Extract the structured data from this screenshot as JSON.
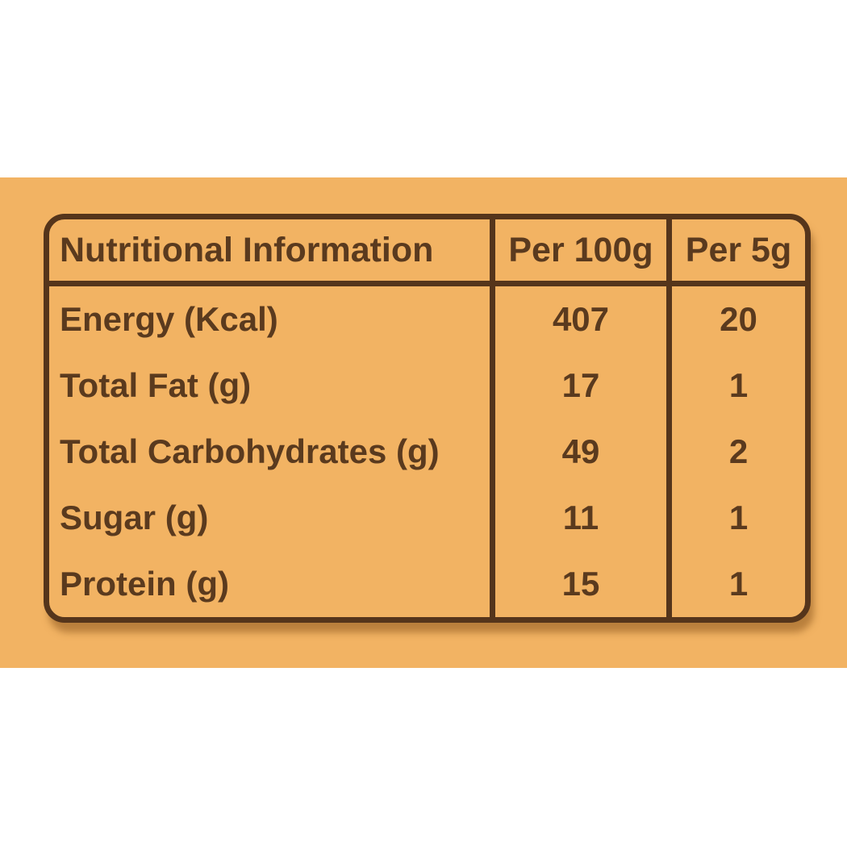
{
  "page": {
    "background_color": "#FFFFFF",
    "panel_color": "#F2B363",
    "table_border_color": "#55351B",
    "text_color": "#5A3A1E"
  },
  "table": {
    "header": {
      "nutrition": "Nutritional Information",
      "per_100g": "Per 100g",
      "per_5g": "Per 5g"
    },
    "rows": [
      {
        "label": "Energy (Kcal)",
        "per_100g": "407",
        "per_5g": "20"
      },
      {
        "label": "Total Fat (g)",
        "per_100g": "17",
        "per_5g": "1"
      },
      {
        "label": "Total Carbohydrates (g)",
        "per_100g": "49",
        "per_5g": "2"
      },
      {
        "label": "Sugar (g)",
        "per_100g": "11",
        "per_5g": "1"
      },
      {
        "label": "Protein (g)",
        "per_100g": "15",
        "per_5g": "1"
      }
    ]
  },
  "chart_data": {
    "type": "table",
    "title": "Nutritional Information",
    "columns": [
      "Nutritional Information",
      "Per 100g",
      "Per 5g"
    ],
    "rows": [
      [
        "Energy (Kcal)",
        407,
        20
      ],
      [
        "Total Fat (g)",
        17,
        1
      ],
      [
        "Total Carbohydrates (g)",
        49,
        2
      ],
      [
        "Sugar (g)",
        11,
        1
      ],
      [
        "Protein (g)",
        15,
        1
      ]
    ]
  }
}
